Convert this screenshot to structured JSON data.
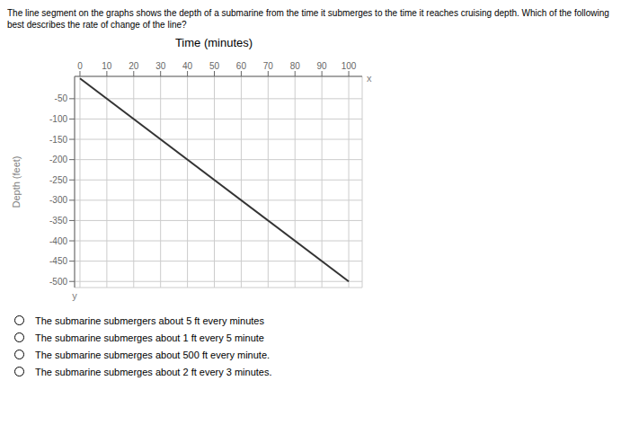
{
  "chart_data": {
    "type": "line",
    "title": "Time (minutes)",
    "subtitle": [
      "The line segment on the graphs shows the depth of a submarine from the time it submerges to the time it reaches cruising depth. Which of the following",
      "best describes the rate of change of the line?"
    ],
    "ylabel": "Depth (feet)",
    "x": [
      0,
      100
    ],
    "values": [
      0,
      -500
    ],
    "color": "#333333",
    "marker": "none",
    "xlim": [
      -2,
      105
    ],
    "ylim": [
      -515,
      5
    ],
    "xticks": [
      0,
      10,
      20,
      30,
      40,
      50,
      60,
      70,
      80,
      90,
      100
    ],
    "yticks": [
      -50,
      -100,
      -150,
      -200,
      -250,
      -300,
      -350,
      -400,
      -450,
      -500
    ],
    "grid": true,
    "annotations": {
      "axis_ends": [
        "x",
        "y"
      ],
      "choices": [
        "The submarine submergers about 5 ft every minutes",
        "The submarine submerges about 1 ft every 5 minute",
        "The submarine submerges about 500 ft every minute.",
        "The submarine submerges about 2 ft every 3 minutes."
      ]
    }
  }
}
